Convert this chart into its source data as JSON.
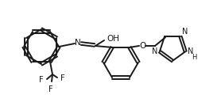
{
  "bg_color": "#ffffff",
  "line_color": "#1a1a1a",
  "line_width": 1.4,
  "font_size": 7.0,
  "dpi": 100,
  "figw": 2.78,
  "figh": 1.34,
  "xlim": [
    0,
    278
  ],
  "ylim": [
    0,
    134
  ]
}
